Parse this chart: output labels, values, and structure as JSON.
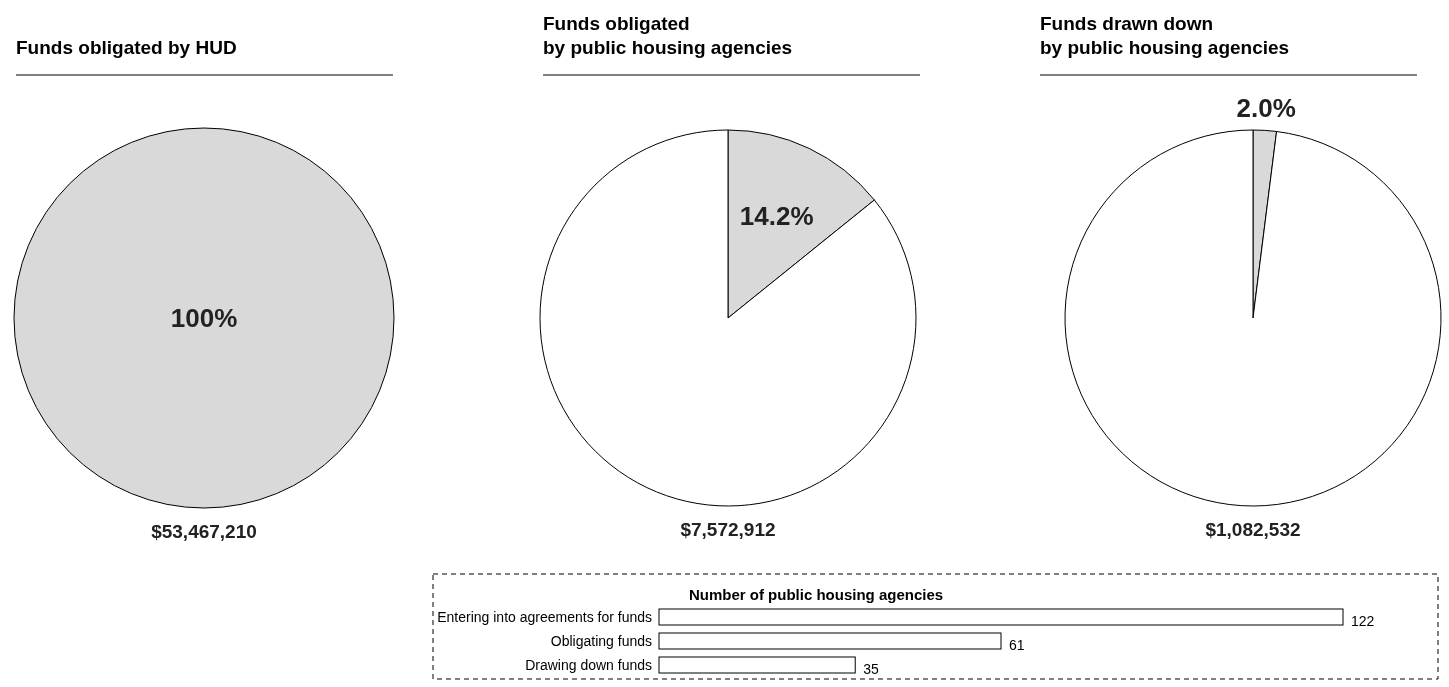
{
  "chart_data": [
    {
      "type": "pie",
      "title": "Funds obligated by HUD",
      "categories": [
        null
      ],
      "values": [
        100
      ],
      "colors": [
        "#d9d9d9"
      ],
      "value_labels": [
        "100%"
      ],
      "annotations": [
        "$53,467,210"
      ]
    },
    {
      "type": "pie",
      "title": "Funds obligated\nby public housing agencies",
      "categories": [
        null,
        null
      ],
      "values": [
        14.2,
        85.8
      ],
      "colors": [
        "#d9d9d9",
        "#ffffff"
      ],
      "value_labels": [
        "14.2%",
        null
      ],
      "annotations": [
        "$7,572,912"
      ]
    },
    {
      "type": "pie",
      "title": "Funds drawn down\nby public housing agencies",
      "categories": [
        null,
        null
      ],
      "values": [
        2.0,
        98.0
      ],
      "colors": [
        "#d9d9d9",
        "#ffffff"
      ],
      "value_labels": [
        "2.0%",
        null
      ],
      "annotations": [
        "$1,082,532"
      ]
    },
    {
      "type": "bar",
      "orientation": "horizontal",
      "title": "Number of public housing agencies",
      "categories": [
        "Entering into agreements for funds",
        "Obligating funds",
        "Drawing down funds"
      ],
      "values": [
        122,
        61,
        35
      ],
      "color": "#ffffff",
      "data_labels": true
    }
  ]
}
